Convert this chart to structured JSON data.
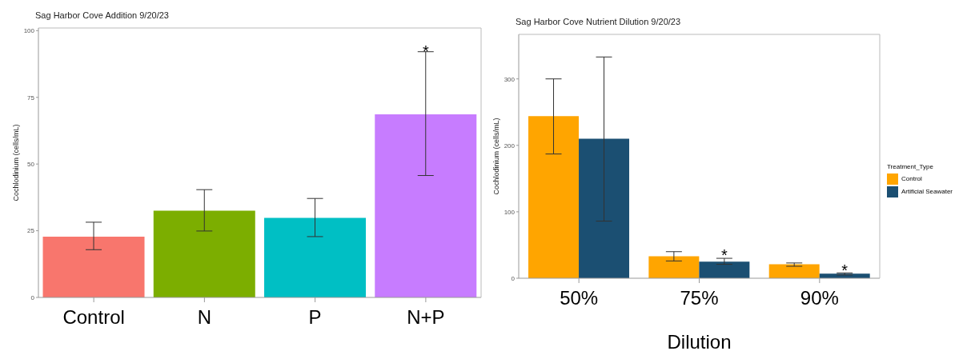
{
  "chart_data": [
    {
      "type": "bar",
      "title": "Sag Harbor Cove Addition 9/20/23",
      "ylabel": "Cochlodinium (cells/mL)",
      "categories": [
        "Control",
        "N",
        "P",
        "N+P"
      ],
      "values": [
        22.8,
        32.5,
        29.8,
        68.6
      ],
      "colors": [
        "#f8766d",
        "#7cae00",
        "#00bfc4",
        "#c77cff"
      ],
      "errors": [
        [
          17.9,
          28.2
        ],
        [
          24.9,
          40.4
        ],
        [
          22.8,
          37.1
        ],
        [
          45.7,
          92.1
        ]
      ],
      "ylim": [
        0,
        101
      ],
      "yticks": [
        0,
        25,
        50,
        75,
        100
      ],
      "legend": false,
      "annotations": [
        {
          "text": "*",
          "x": "N+P",
          "y": 93
        }
      ]
    },
    {
      "type": "bar",
      "title": "Sag Harbor Cove Nutrient Dilution 9/20/23",
      "xlabel": "Dilution",
      "ylabel": "Cochlodinium (cells/mL)",
      "legend_title": "Treatment_Type",
      "categories": [
        "50%",
        "75%",
        "90%"
      ],
      "series": [
        {
          "name": "Control",
          "color": "#ffa500",
          "values": [
            244,
            33,
            21
          ],
          "errors": [
            [
              187,
              300
            ],
            [
              26,
              40
            ],
            [
              18,
              23
            ]
          ]
        },
        {
          "name": "Artificial Seawater",
          "color": "#1b4f72",
          "values": [
            210,
            25,
            7
          ],
          "errors": [
            [
              86,
              333
            ],
            [
              21,
              30
            ],
            [
              5,
              8
            ]
          ]
        }
      ],
      "ylim": [
        0,
        367
      ],
      "yticks": [
        0,
        100,
        200,
        300
      ],
      "legend": "right",
      "annotations": [
        {
          "text": "*",
          "x": "75%",
          "y": 37
        },
        {
          "text": "*",
          "x": "90%",
          "y": 15
        }
      ]
    }
  ]
}
